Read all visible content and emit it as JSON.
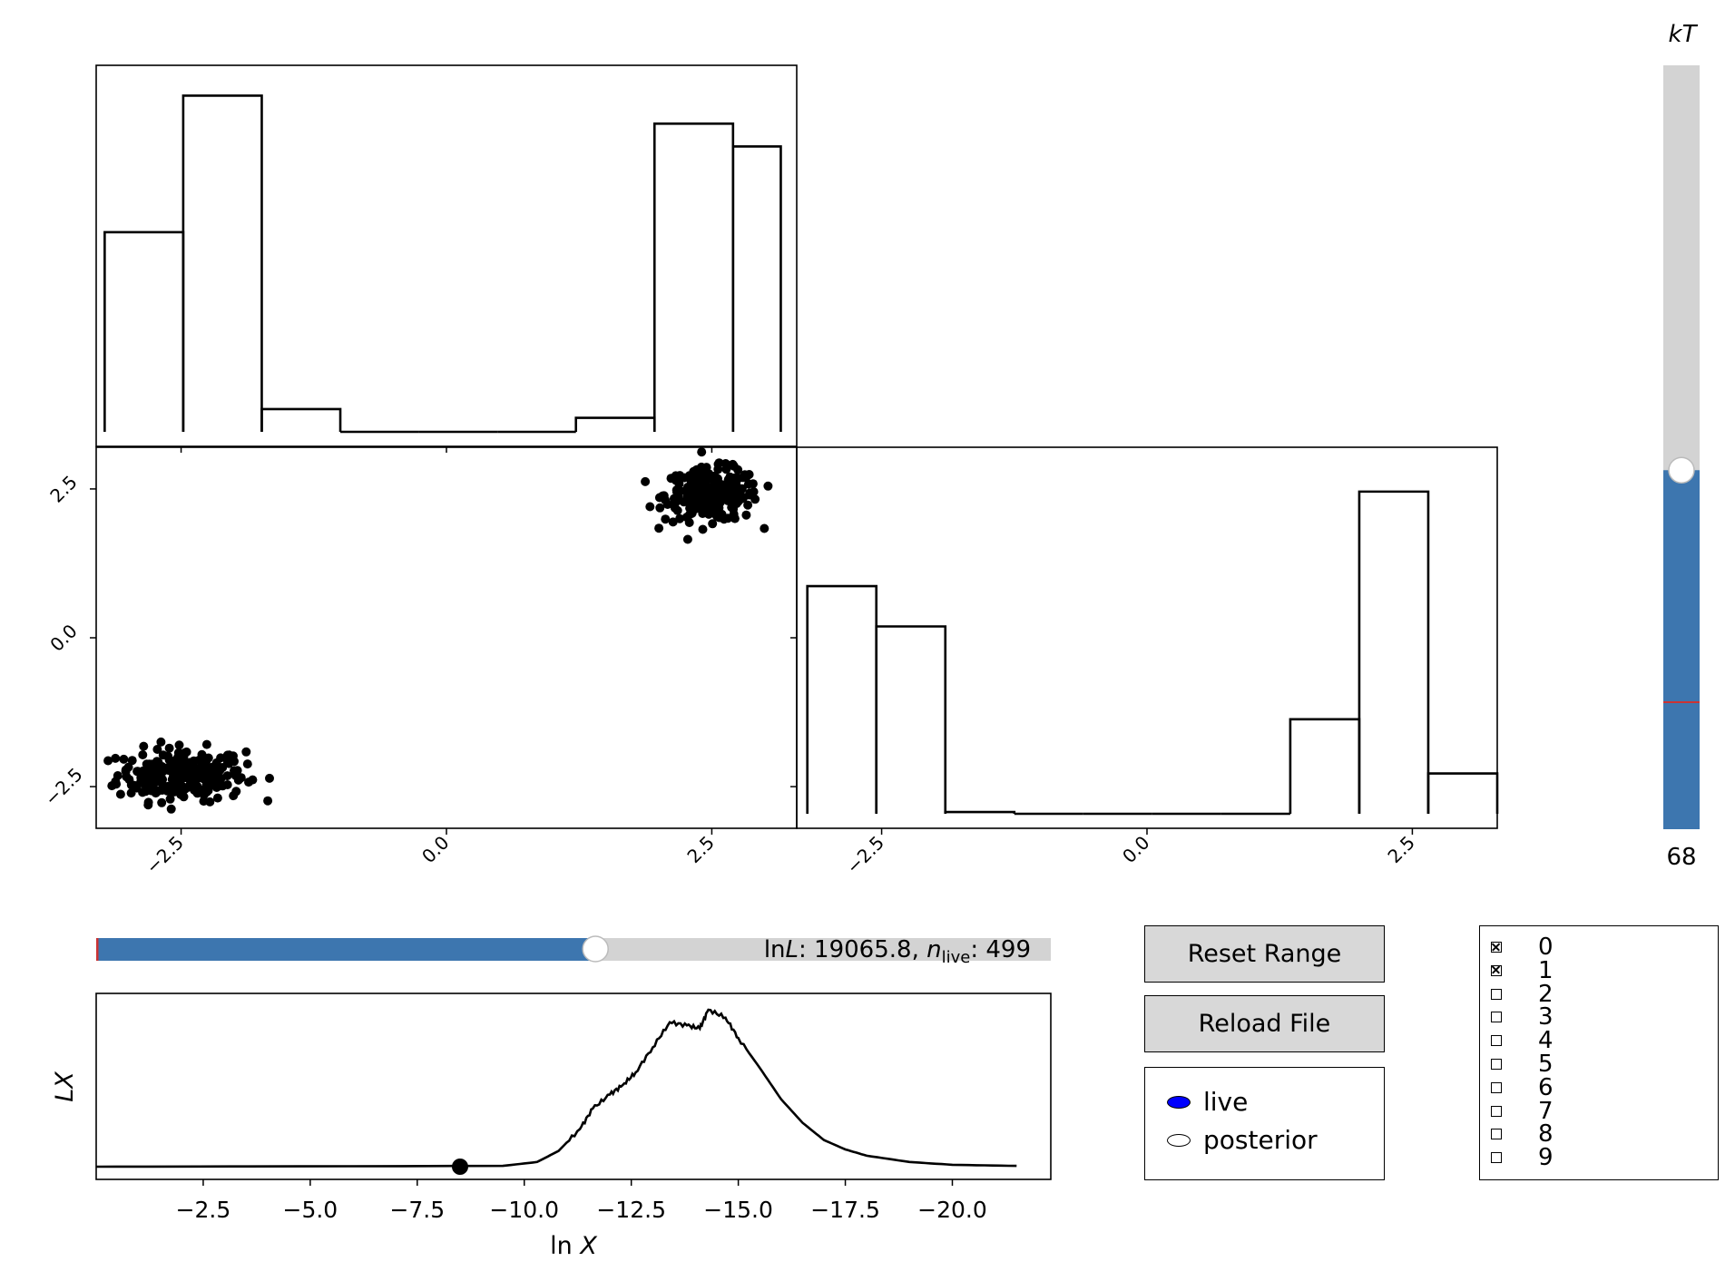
{
  "chart_data": [
    {
      "panel": "marginal-x0",
      "type": "histogram",
      "bin_edges": [
        -3.22,
        -2.48,
        -1.74,
        -1.0,
        -0.26,
        0.48,
        1.22,
        1.96,
        2.7,
        3.44
      ],
      "counts": [
        0.57,
        0.96,
        0.065,
        0.0,
        0.0,
        0.0,
        0.04,
        0.88,
        0.815
      ],
      "ylim": [
        0,
        1.0
      ]
    },
    {
      "panel": "scatter-x0-x1",
      "type": "scatter",
      "xlim": [
        -3.3,
        3.3
      ],
      "ylim": [
        -3.2,
        3.2
      ],
      "xticks": [
        "−2.5",
        "0.0",
        "2.5"
      ],
      "yticks": [
        "−2.5",
        "0.0",
        "2.5"
      ],
      "clusters": [
        {
          "center": [
            -2.5,
            -2.3
          ],
          "spread": [
            0.3,
            0.22
          ],
          "n": 250
        },
        {
          "center": [
            2.5,
            2.4
          ],
          "spread": [
            0.22,
            0.22
          ],
          "n": 250
        }
      ]
    },
    {
      "panel": "marginal-x1",
      "type": "histogram",
      "bin_edges": [
        -3.2,
        -2.55,
        -1.9,
        -1.25,
        -0.6,
        0.05,
        0.7,
        1.35,
        2.0,
        2.65,
        3.3
      ],
      "counts": [
        0.65,
        0.535,
        0.005,
        0.0,
        0.0,
        0.0,
        0.0,
        0.27,
        0.92,
        0.115
      ],
      "xlim": [
        -3.3,
        3.3
      ],
      "ylim": [
        0,
        1.0
      ],
      "xticks": [
        "−2.5",
        "0.0",
        "2.5"
      ]
    },
    {
      "panel": "LX-curve",
      "type": "line",
      "xlim": [
        0,
        -22.3
      ],
      "ylim": [
        0,
        1.0
      ],
      "xticks": [
        "−2.5",
        "−5.0",
        "−7.5",
        "−10.0",
        "−12.5",
        "−15.0",
        "−17.5",
        "−20.0"
      ],
      "xlabel": "ln X",
      "ylabel": "LX",
      "x": [
        0,
        -9.5,
        -10.3,
        -10.8,
        -11.3,
        -11.6,
        -12.0,
        -12.3,
        -12.6,
        -13.0,
        -13.4,
        -13.8,
        -14.1,
        -14.3,
        -14.7,
        -15.0,
        -15.5,
        -16.0,
        -16.5,
        -17.0,
        -17.5,
        -18.0,
        -19.0,
        -20.0,
        -21.5
      ],
      "y": [
        0.0,
        0.005,
        0.03,
        0.1,
        0.24,
        0.37,
        0.46,
        0.52,
        0.6,
        0.76,
        0.92,
        0.9,
        0.88,
        1.0,
        0.95,
        0.82,
        0.63,
        0.43,
        0.28,
        0.17,
        0.11,
        0.07,
        0.03,
        0.012,
        0.005
      ],
      "marker": {
        "x": -8.5,
        "y": 0.0
      }
    }
  ],
  "kT_slider": {
    "label": "kT",
    "value": "68",
    "fraction": 0.47,
    "red_line_fraction": 0.165
  },
  "iteration_slider": {
    "fraction": 0.523,
    "readout_lnL": "19065.8",
    "readout_nlive": "499"
  },
  "buttons": {
    "reset_range": "Reset Range",
    "reload_file": "Reload File"
  },
  "radio": {
    "options": [
      "live",
      "posterior"
    ],
    "selected": "live",
    "selected_color": "#0000ff"
  },
  "checkboxes": {
    "items": [
      "0",
      "1",
      "2",
      "3",
      "4",
      "5",
      "6",
      "7",
      "8",
      "9"
    ],
    "checked": [
      true,
      true,
      false,
      false,
      false,
      false,
      false,
      false,
      false,
      false
    ]
  },
  "colors": {
    "accent": "#3d76af",
    "track": "#d3d3d3",
    "marker_line": "#cc3333"
  }
}
